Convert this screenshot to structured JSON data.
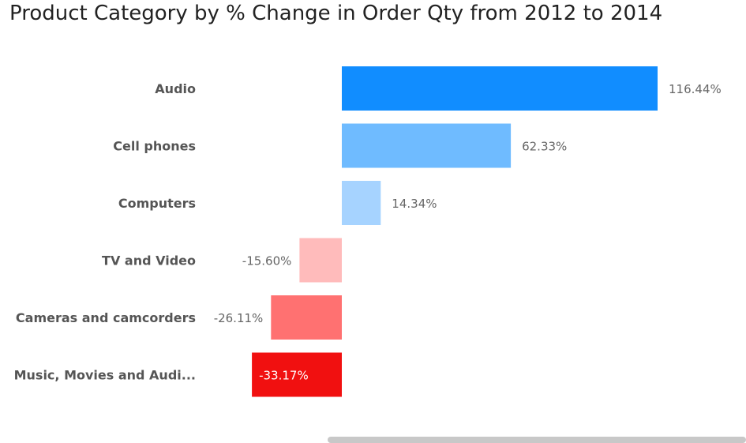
{
  "title": "Product Category by % Change in Order Qty from 2012 to 2014",
  "chart_data": {
    "type": "bar",
    "orientation": "horizontal",
    "title": "Product Category by % Change in Order Qty from 2012 to 2014",
    "categories": [
      "Audio",
      "Cell phones",
      "Computers",
      "TV and Video",
      "Cameras and camcorders",
      "Music, Movies and Audi..."
    ],
    "values": [
      116.44,
      62.33,
      14.34,
      -15.6,
      -26.11,
      -33.17
    ],
    "value_labels": [
      "116.44%",
      "62.33%",
      "14.34%",
      "-15.60%",
      "-26.11%",
      "-33.17%"
    ],
    "bar_colors": [
      "#118DFF",
      "#6FBBFF",
      "#A6D3FF",
      "#FFBBBB",
      "#FF7171",
      "#F11010"
    ],
    "xlim": [
      -33.17,
      116.44
    ],
    "grid": false,
    "legend": "none"
  }
}
